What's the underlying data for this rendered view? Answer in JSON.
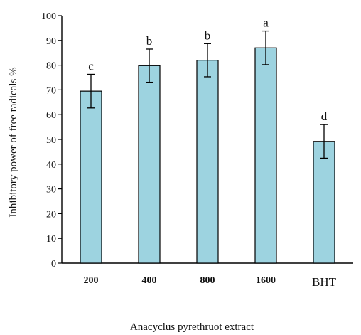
{
  "chart_data": {
    "type": "bar",
    "title": "",
    "xlabel": "Anacyclus pyrethruot extract",
    "ylabel": "Inhibitory power of free radicals %",
    "ylim": [
      0,
      100
    ],
    "yticks": [
      0,
      10,
      20,
      30,
      40,
      50,
      60,
      70,
      80,
      90,
      100
    ],
    "categories": [
      "200",
      "400",
      "800",
      "1600",
      "BHT"
    ],
    "values": [
      69.5,
      79.8,
      82.0,
      87.0,
      49.2
    ],
    "errors": [
      6.8,
      6.7,
      6.7,
      6.8,
      6.8
    ],
    "significance_labels": [
      "c",
      "b",
      "b",
      "a",
      "d"
    ],
    "bar_color": "#9dd3e0",
    "bar_edge_color": "#000000",
    "grid": false,
    "legend": "none"
  }
}
